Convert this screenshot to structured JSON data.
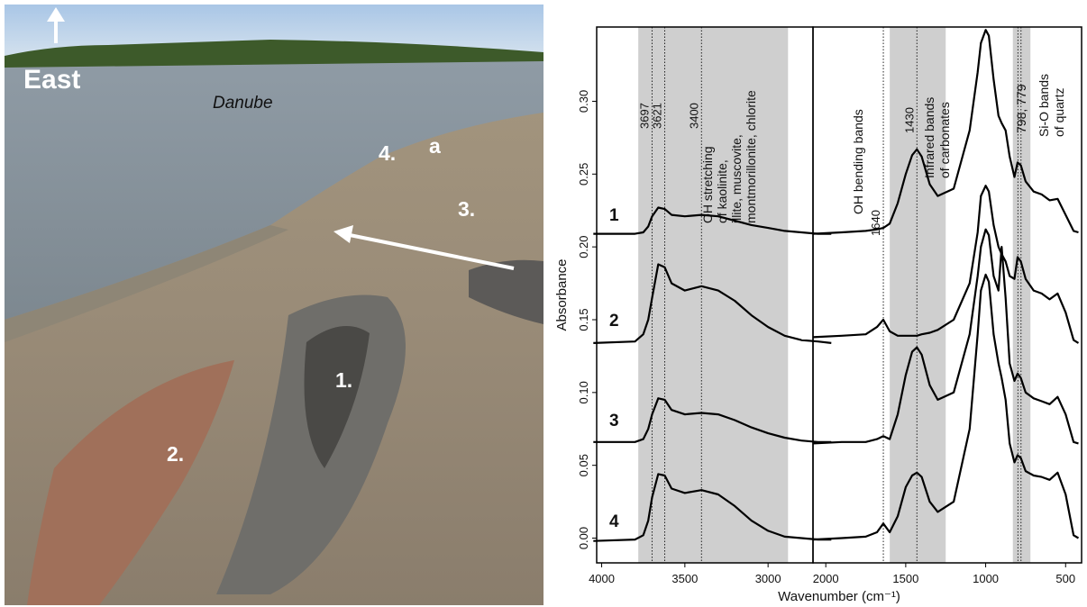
{
  "photo": {
    "labels": [
      "East",
      "Danube",
      "4.",
      "a",
      "3.",
      "1.",
      "2."
    ]
  },
  "chart_data": [
    {
      "type": "line",
      "y_label": "Absorbance",
      "x_label": "Wavenumber (cm⁻¹)",
      "xlim": [
        4030,
        2730
      ],
      "xticks": [
        4000,
        3500,
        3000
      ],
      "ylim": [
        -0.017,
        0.351
      ],
      "yticks": [
        {
          "value": 0,
          "label": "0.00"
        },
        {
          "value": 0.05,
          "label": "0.05"
        },
        {
          "value": 0.1,
          "label": "0.10"
        },
        {
          "value": 0.15,
          "label": "0.15"
        },
        {
          "value": 0.2,
          "label": "0.20"
        },
        {
          "value": 0.25,
          "label": "0.25"
        },
        {
          "value": 0.3,
          "label": "0.30"
        }
      ],
      "bands": [
        [
          3780,
          2880
        ]
      ],
      "markers": [
        3697,
        3621,
        3400
      ],
      "annotations": [
        [
          "OH stretching",
          "of kaolinite,",
          "illite, muscovite,",
          "montmorillonite, chlorite"
        ]
      ],
      "x": [
        4050,
        3800,
        3750,
        3720,
        3697,
        3660,
        3621,
        3580,
        3500,
        3400,
        3300,
        3200,
        3100,
        3000,
        2900,
        2800,
        2700,
        2620
      ],
      "series": [
        {
          "name": "1",
          "color": "#000000",
          "values": [
            0.209,
            0.209,
            0.21,
            0.214,
            0.221,
            0.227,
            0.226,
            0.222,
            0.221,
            0.222,
            0.221,
            0.218,
            0.215,
            0.213,
            0.211,
            0.21,
            0.209,
            0.209
          ]
        },
        {
          "name": "2",
          "color": "#000000",
          "values": [
            0.134,
            0.135,
            0.14,
            0.15,
            0.165,
            0.188,
            0.186,
            0.175,
            0.17,
            0.173,
            0.17,
            0.163,
            0.153,
            0.145,
            0.139,
            0.136,
            0.135,
            0.134
          ]
        },
        {
          "name": "3",
          "color": "#000000",
          "values": [
            0.066,
            0.066,
            0.068,
            0.075,
            0.085,
            0.096,
            0.095,
            0.088,
            0.085,
            0.086,
            0.085,
            0.081,
            0.076,
            0.072,
            0.069,
            0.067,
            0.066,
            0.066
          ]
        },
        {
          "name": "4",
          "color": "#000000",
          "values": [
            -0.002,
            -0.001,
            0.002,
            0.012,
            0.028,
            0.044,
            0.043,
            0.034,
            0.031,
            0.033,
            0.03,
            0.022,
            0.012,
            0.005,
            0.001,
            0.0,
            -0.001,
            -0.001
          ]
        }
      ]
    },
    {
      "type": "line",
      "xlim": [
        2080,
        400
      ],
      "xticks": [
        2000,
        1500,
        1000,
        500
      ],
      "ylim": [
        -0.017,
        0.351
      ],
      "bands": [
        [
          1600,
          1250
        ],
        [
          830,
          720
        ]
      ],
      "markers": [
        1640,
        1430
      ],
      "band_lines": [
        798,
        779
      ],
      "annotations": [
        [
          "OH bending bands"
        ],
        [
          "Infrared bands",
          "of carbonates"
        ],
        [
          "798, 779"
        ],
        [
          "Si-O bands",
          "of quartz"
        ]
      ],
      "x": [
        2080,
        1900,
        1750,
        1680,
        1640,
        1600,
        1550,
        1500,
        1460,
        1430,
        1400,
        1350,
        1300,
        1200,
        1100,
        1050,
        1030,
        1000,
        980,
        950,
        920,
        900,
        875,
        850,
        820,
        800,
        780,
        750,
        700,
        650,
        600,
        550,
        500,
        450,
        420
      ],
      "series": [
        {
          "color": "#000000",
          "values": [
            0.209,
            0.21,
            0.211,
            0.212,
            0.213,
            0.216,
            0.23,
            0.25,
            0.263,
            0.267,
            0.262,
            0.243,
            0.235,
            0.24,
            0.28,
            0.32,
            0.34,
            0.349,
            0.345,
            0.315,
            0.29,
            0.285,
            0.28,
            0.262,
            0.248,
            0.258,
            0.256,
            0.245,
            0.238,
            0.236,
            0.232,
            0.233,
            0.222,
            0.211,
            0.21
          ]
        },
        {
          "color": "#000000",
          "values": [
            0.138,
            0.139,
            0.14,
            0.145,
            0.15,
            0.142,
            0.139,
            0.139,
            0.139,
            0.139,
            0.14,
            0.141,
            0.143,
            0.15,
            0.175,
            0.21,
            0.235,
            0.242,
            0.238,
            0.215,
            0.2,
            0.195,
            0.19,
            0.18,
            0.178,
            0.193,
            0.19,
            0.178,
            0.17,
            0.168,
            0.164,
            0.168,
            0.155,
            0.136,
            0.134
          ]
        },
        {
          "color": "#000000",
          "values": [
            0.065,
            0.066,
            0.066,
            0.068,
            0.07,
            0.068,
            0.085,
            0.112,
            0.128,
            0.131,
            0.126,
            0.105,
            0.095,
            0.1,
            0.14,
            0.18,
            0.2,
            0.212,
            0.208,
            0.18,
            0.17,
            0.2,
            0.165,
            0.12,
            0.108,
            0.113,
            0.11,
            0.1,
            0.096,
            0.094,
            0.092,
            0.097,
            0.085,
            0.066,
            0.065
          ]
        },
        {
          "color": "#000000",
          "values": [
            -0.001,
            0.0,
            0.001,
            0.004,
            0.01,
            0.004,
            0.015,
            0.035,
            0.043,
            0.045,
            0.042,
            0.025,
            0.018,
            0.025,
            0.075,
            0.14,
            0.17,
            0.181,
            0.176,
            0.14,
            0.12,
            0.11,
            0.095,
            0.065,
            0.052,
            0.057,
            0.055,
            0.046,
            0.043,
            0.042,
            0.04,
            0.045,
            0.03,
            0.002,
            0.0
          ]
        }
      ]
    }
  ]
}
